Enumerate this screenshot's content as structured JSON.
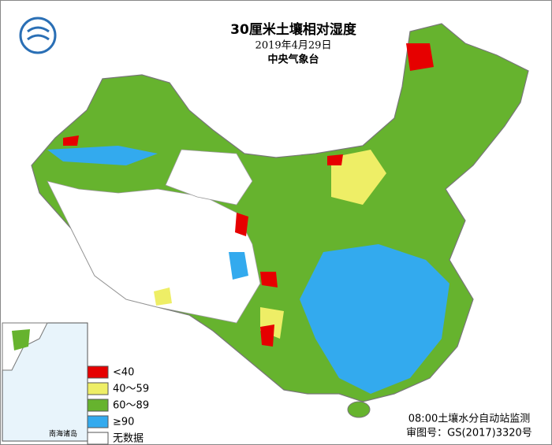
{
  "header": {
    "title": "30厘米土壤相对湿度",
    "date": "2019年4月29日",
    "source": "中央气象台"
  },
  "legend": [
    {
      "label": "<40",
      "color": "#e60000"
    },
    {
      "label": "40～59",
      "color": "#eeee66"
    },
    {
      "label": "60～89",
      "color": "#66b32e"
    },
    {
      "label": "≥90",
      "color": "#33aaee"
    },
    {
      "label": "无数据",
      "color": "#ffffff"
    }
  ],
  "inset": {
    "label": "南海诸岛"
  },
  "footer": {
    "method": "08:00土壤水分自动站监测",
    "approval": "审图号：GS(2017)3320号"
  }
}
